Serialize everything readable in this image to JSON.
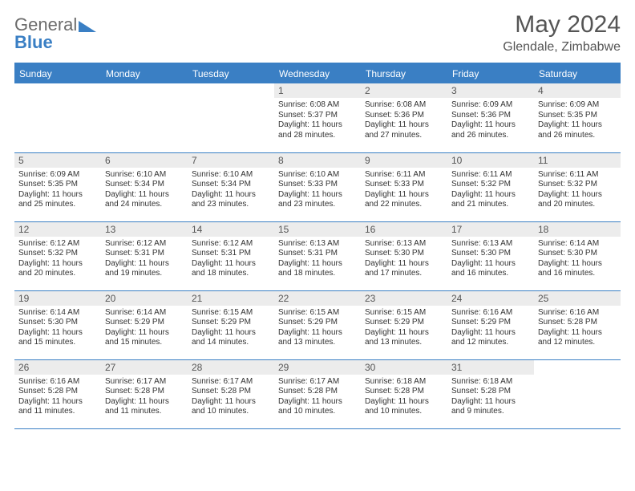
{
  "brand": {
    "part1": "General",
    "part2": "Blue"
  },
  "header": {
    "title": "May 2024",
    "location": "Glendale, Zimbabwe"
  },
  "colors": {
    "accent": "#3a7fc4",
    "muted_bg": "#ececec",
    "text": "#333333",
    "header_text": "#555555"
  },
  "layout": {
    "cols": 7,
    "rows": 5,
    "first_weekday_index": 3
  },
  "weekdays": [
    "Sunday",
    "Monday",
    "Tuesday",
    "Wednesday",
    "Thursday",
    "Friday",
    "Saturday"
  ],
  "days": [
    {
      "n": 1,
      "sunrise": "6:08 AM",
      "sunset": "5:37 PM",
      "daylight": "11 hours and 28 minutes."
    },
    {
      "n": 2,
      "sunrise": "6:08 AM",
      "sunset": "5:36 PM",
      "daylight": "11 hours and 27 minutes."
    },
    {
      "n": 3,
      "sunrise": "6:09 AM",
      "sunset": "5:36 PM",
      "daylight": "11 hours and 26 minutes."
    },
    {
      "n": 4,
      "sunrise": "6:09 AM",
      "sunset": "5:35 PM",
      "daylight": "11 hours and 26 minutes."
    },
    {
      "n": 5,
      "sunrise": "6:09 AM",
      "sunset": "5:35 PM",
      "daylight": "11 hours and 25 minutes."
    },
    {
      "n": 6,
      "sunrise": "6:10 AM",
      "sunset": "5:34 PM",
      "daylight": "11 hours and 24 minutes."
    },
    {
      "n": 7,
      "sunrise": "6:10 AM",
      "sunset": "5:34 PM",
      "daylight": "11 hours and 23 minutes."
    },
    {
      "n": 8,
      "sunrise": "6:10 AM",
      "sunset": "5:33 PM",
      "daylight": "11 hours and 23 minutes."
    },
    {
      "n": 9,
      "sunrise": "6:11 AM",
      "sunset": "5:33 PM",
      "daylight": "11 hours and 22 minutes."
    },
    {
      "n": 10,
      "sunrise": "6:11 AM",
      "sunset": "5:32 PM",
      "daylight": "11 hours and 21 minutes."
    },
    {
      "n": 11,
      "sunrise": "6:11 AM",
      "sunset": "5:32 PM",
      "daylight": "11 hours and 20 minutes."
    },
    {
      "n": 12,
      "sunrise": "6:12 AM",
      "sunset": "5:32 PM",
      "daylight": "11 hours and 20 minutes."
    },
    {
      "n": 13,
      "sunrise": "6:12 AM",
      "sunset": "5:31 PM",
      "daylight": "11 hours and 19 minutes."
    },
    {
      "n": 14,
      "sunrise": "6:12 AM",
      "sunset": "5:31 PM",
      "daylight": "11 hours and 18 minutes."
    },
    {
      "n": 15,
      "sunrise": "6:13 AM",
      "sunset": "5:31 PM",
      "daylight": "11 hours and 18 minutes."
    },
    {
      "n": 16,
      "sunrise": "6:13 AM",
      "sunset": "5:30 PM",
      "daylight": "11 hours and 17 minutes."
    },
    {
      "n": 17,
      "sunrise": "6:13 AM",
      "sunset": "5:30 PM",
      "daylight": "11 hours and 16 minutes."
    },
    {
      "n": 18,
      "sunrise": "6:14 AM",
      "sunset": "5:30 PM",
      "daylight": "11 hours and 16 minutes."
    },
    {
      "n": 19,
      "sunrise": "6:14 AM",
      "sunset": "5:30 PM",
      "daylight": "11 hours and 15 minutes."
    },
    {
      "n": 20,
      "sunrise": "6:14 AM",
      "sunset": "5:29 PM",
      "daylight": "11 hours and 15 minutes."
    },
    {
      "n": 21,
      "sunrise": "6:15 AM",
      "sunset": "5:29 PM",
      "daylight": "11 hours and 14 minutes."
    },
    {
      "n": 22,
      "sunrise": "6:15 AM",
      "sunset": "5:29 PM",
      "daylight": "11 hours and 13 minutes."
    },
    {
      "n": 23,
      "sunrise": "6:15 AM",
      "sunset": "5:29 PM",
      "daylight": "11 hours and 13 minutes."
    },
    {
      "n": 24,
      "sunrise": "6:16 AM",
      "sunset": "5:29 PM",
      "daylight": "11 hours and 12 minutes."
    },
    {
      "n": 25,
      "sunrise": "6:16 AM",
      "sunset": "5:28 PM",
      "daylight": "11 hours and 12 minutes."
    },
    {
      "n": 26,
      "sunrise": "6:16 AM",
      "sunset": "5:28 PM",
      "daylight": "11 hours and 11 minutes."
    },
    {
      "n": 27,
      "sunrise": "6:17 AM",
      "sunset": "5:28 PM",
      "daylight": "11 hours and 11 minutes."
    },
    {
      "n": 28,
      "sunrise": "6:17 AM",
      "sunset": "5:28 PM",
      "daylight": "11 hours and 10 minutes."
    },
    {
      "n": 29,
      "sunrise": "6:17 AM",
      "sunset": "5:28 PM",
      "daylight": "11 hours and 10 minutes."
    },
    {
      "n": 30,
      "sunrise": "6:18 AM",
      "sunset": "5:28 PM",
      "daylight": "11 hours and 10 minutes."
    },
    {
      "n": 31,
      "sunrise": "6:18 AM",
      "sunset": "5:28 PM",
      "daylight": "11 hours and 9 minutes."
    }
  ],
  "labels": {
    "sunrise": "Sunrise: ",
    "sunset": "Sunset: ",
    "daylight": "Daylight: "
  }
}
